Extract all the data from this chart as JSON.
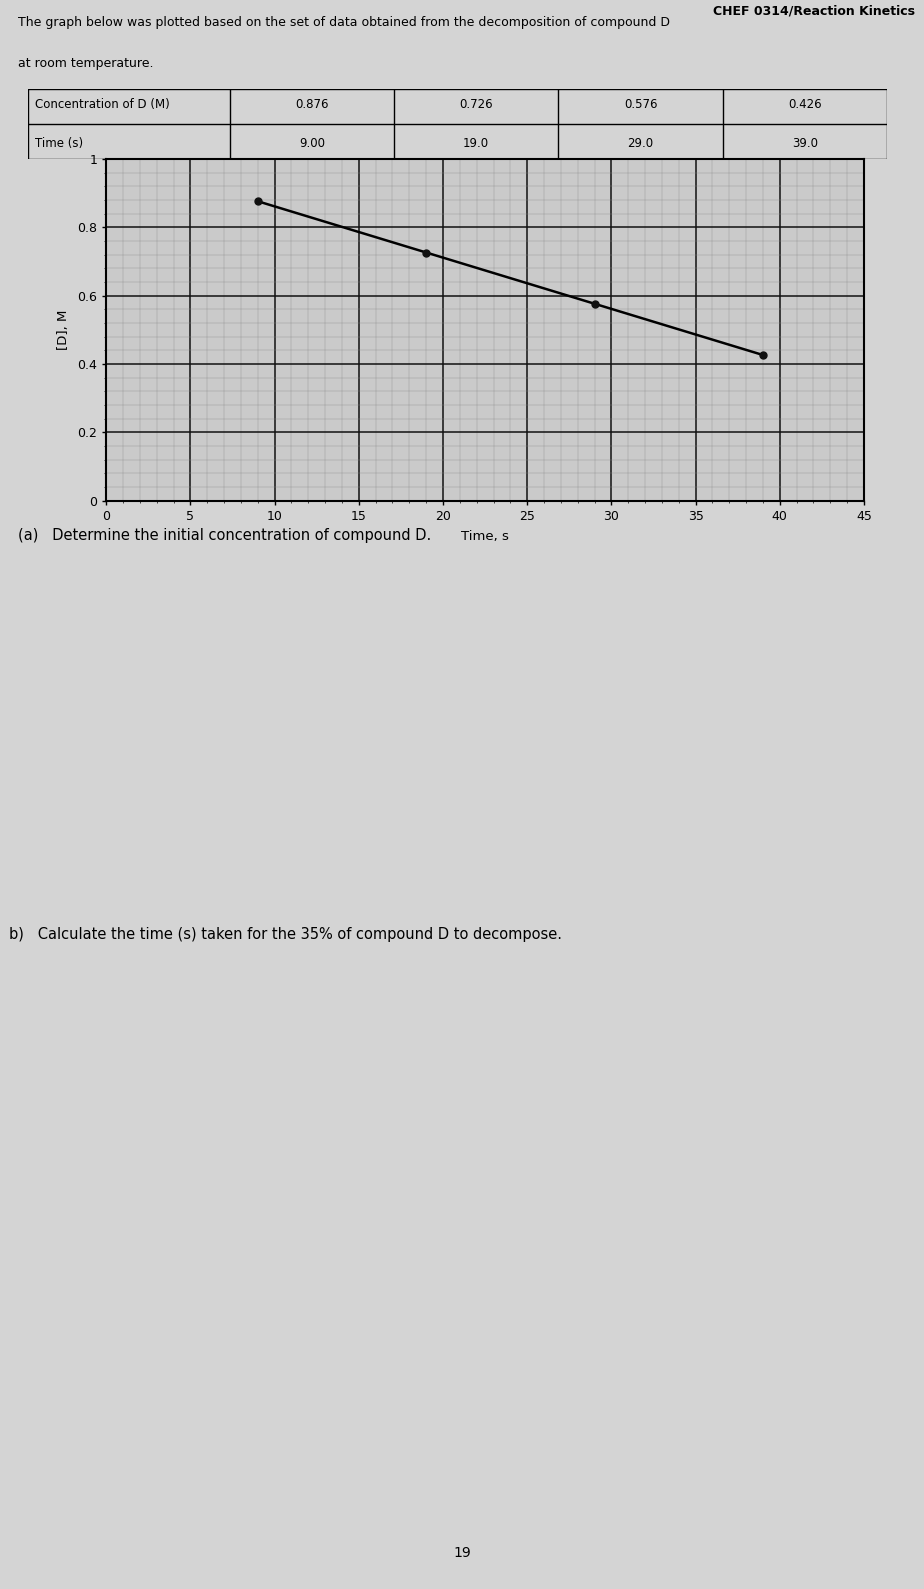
{
  "header_right": "CHEF 0314/Reaction Kinetics",
  "header_line1": "The graph below was plotted based on the set of data obtained from the decomposition of compound D",
  "header_line2": "at room temperature.",
  "table": {
    "row1_label": "Concentration of D (M)",
    "row2_label": "Time (s)",
    "col_conc": [
      "0.876",
      "0.726",
      "0.576",
      "0.426"
    ],
    "col_time": [
      "9.00",
      "19.0",
      "29.0",
      "39.0"
    ]
  },
  "plot": {
    "time": [
      9.0,
      19.0,
      29.0,
      39.0
    ],
    "conc": [
      0.876,
      0.726,
      0.576,
      0.426
    ],
    "xlabel": "Time, s",
    "ylabel": "[D], M",
    "xlim": [
      0,
      45
    ],
    "ylim": [
      0,
      1.0
    ],
    "xticks": [
      0,
      5,
      10,
      15,
      20,
      25,
      30,
      35,
      40,
      45
    ],
    "yticks": [
      0,
      0.2,
      0.4,
      0.6,
      0.8,
      1.0
    ],
    "line_color": "#000000",
    "marker_color": "#111111",
    "grid_major_color": "#111111",
    "grid_minor_color": "#888888",
    "bg_color": "#cacaca"
  },
  "question_a": "(a)   Determine the initial concentration of compound D.",
  "question_b": "b)   Calculate the time (s) taken for the 35% of compound D to decompose.",
  "page_number": "19",
  "bg_page_color": "#d4d4d4"
}
